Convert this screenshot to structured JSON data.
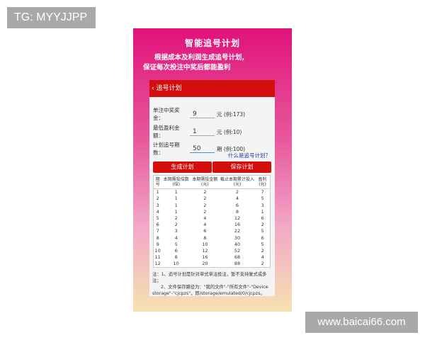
{
  "watermarks": {
    "tg": "TG: MYYJJPP",
    "site": "www.baicai66.com"
  },
  "banner": {
    "title": "智能追号计划",
    "line1": "根据成本及利润生成追号计划,",
    "line2": "保证每次投注中奖后都能盈利"
  },
  "header": {
    "back": "‹",
    "title": "追号计划"
  },
  "form": [
    {
      "label": "单注中奖奖金：",
      "value": "9",
      "hint": "元 (例:173)"
    },
    {
      "label": "最低盈利金额：",
      "value": "1",
      "hint": "元 (例:10)"
    },
    {
      "label": "计划追号期数：",
      "value": "50",
      "hint": "期 (例:100)"
    }
  ],
  "help_link": "什么是追号计划？",
  "buttons": {
    "generate": "生成计划",
    "save": "保存计划"
  },
  "table": {
    "headers": [
      "期号",
      "本期需投倍数(倍)",
      "本期需投金额(元)",
      "截止本期累计投入(元)",
      "盈利(元)"
    ],
    "rows": [
      [
        "1",
        "1",
        "2",
        "2",
        "7"
      ],
      [
        "2",
        "1",
        "2",
        "4",
        "5"
      ],
      [
        "3",
        "1",
        "2",
        "6",
        "3"
      ],
      [
        "4",
        "1",
        "2",
        "8",
        "1"
      ],
      [
        "5",
        "2",
        "4",
        "12",
        "6"
      ],
      [
        "6",
        "2",
        "4",
        "16",
        "2"
      ],
      [
        "7",
        "3",
        "6",
        "22",
        "5"
      ],
      [
        "8",
        "4",
        "8",
        "30",
        "6"
      ],
      [
        "9",
        "5",
        "10",
        "40",
        "5"
      ],
      [
        "10",
        "6",
        "12",
        "52",
        "2"
      ],
      [
        "11",
        "8",
        "16",
        "68",
        "4"
      ],
      [
        "12",
        "10",
        "20",
        "88",
        "2"
      ]
    ]
  },
  "notes": {
    "n1": "注：1、追号计划是针对单式单注投注，暂不支持复式或多注；",
    "n2": "2、文件保存路径为：\"我的文件\"-\"所有文件\"-\"Device storage\"-\"cjcpzs\"，即/storage/emulated/0/cjcpzs。"
  }
}
